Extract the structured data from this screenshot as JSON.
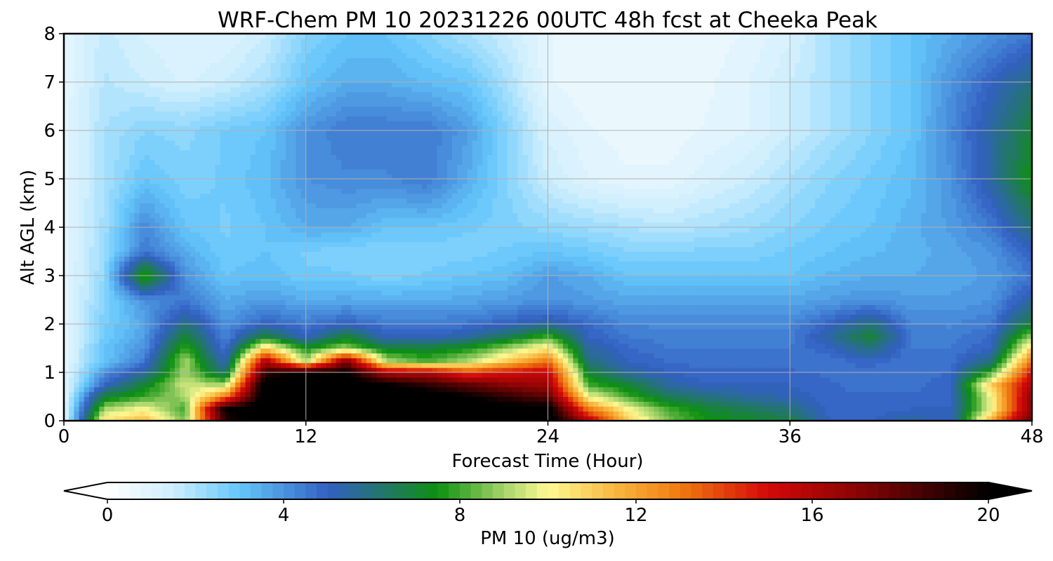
{
  "chart_data": {
    "type": "heatmap",
    "title": "WRF-Chem PM 10  20231226 00UTC 48h fcst at Cheeka Peak",
    "xlabel": "Forecast Time (Hour)",
    "ylabel": "Alt AGL (km)",
    "xlim": [
      0,
      48
    ],
    "ylim": [
      0,
      8
    ],
    "xticks": [
      "0",
      "12",
      "24",
      "36",
      "48"
    ],
    "yticks": [
      "0",
      "1",
      "2",
      "3",
      "4",
      "5",
      "6",
      "7",
      "8"
    ],
    "grid": true,
    "colorbar": {
      "label": "PM 10  (ug/m3)",
      "range": [
        0,
        20
      ],
      "ticks": [
        "0",
        "4",
        "8",
        "12",
        "16",
        "20"
      ],
      "extend": "both",
      "orientation": "horizontal",
      "stops": [
        {
          "v": 0,
          "color": "#ffffff"
        },
        {
          "v": 1.5,
          "color": "#cdeefd"
        },
        {
          "v": 3,
          "color": "#64c6fb"
        },
        {
          "v": 5,
          "color": "#3360c2"
        },
        {
          "v": 6.5,
          "color": "#1f7a5a"
        },
        {
          "v": 7.5,
          "color": "#0c9010"
        },
        {
          "v": 9,
          "color": "#a6d46a"
        },
        {
          "v": 10,
          "color": "#fffa94"
        },
        {
          "v": 11.5,
          "color": "#f8b840"
        },
        {
          "v": 13,
          "color": "#f07a10"
        },
        {
          "v": 15,
          "color": "#d40808"
        },
        {
          "v": 17,
          "color": "#8a0404"
        },
        {
          "v": 20,
          "color": "#000000"
        }
      ]
    },
    "description": "Time-height contour of PM10 concentration; highest values (>20) in lowest 1.3 km between hours 8-26, elevated plume near hour 4 at 3 km, and rising levels after hour 45.",
    "field": {
      "x_hours": [
        0,
        2,
        4,
        6,
        8,
        10,
        12,
        14,
        16,
        18,
        20,
        22,
        24,
        26,
        28,
        30,
        32,
        34,
        36,
        38,
        40,
        42,
        44,
        46,
        48
      ],
      "y_km": [
        0,
        0.25,
        0.5,
        0.75,
        1.0,
        1.25,
        1.5,
        1.75,
        2.0,
        2.5,
        3.0,
        3.5,
        4.0,
        5.0,
        6.0,
        7.0,
        8.0
      ],
      "values": [
        [
          0.8,
          10.5,
          11.5,
          8.5,
          19,
          21,
          21,
          21,
          21,
          21,
          21,
          20.5,
          21,
          16,
          11,
          8.5,
          7.5,
          7.2,
          6.8,
          5,
          5,
          5.5,
          5,
          12,
          18
        ],
        [
          0.8,
          9,
          10,
          8,
          20,
          21,
          21,
          21,
          21,
          21,
          21,
          20.5,
          20.5,
          13,
          10,
          8,
          7,
          6.5,
          6,
          4.8,
          4.8,
          5,
          5,
          10,
          17
        ],
        [
          0.8,
          7,
          8,
          9,
          13,
          21,
          21,
          21,
          21,
          21,
          20,
          19,
          18,
          10,
          8,
          6.5,
          6,
          5.5,
          5.2,
          4.8,
          4.8,
          4.8,
          5,
          10,
          17
        ],
        [
          0.8,
          5,
          7,
          9.5,
          9,
          21,
          21,
          21,
          20,
          19,
          18,
          17,
          16.5,
          8,
          7,
          5.5,
          5,
          5,
          5,
          4.8,
          4.6,
          4.6,
          5,
          11,
          16
        ],
        [
          0.8,
          4,
          5.5,
          9,
          6,
          19,
          20,
          20,
          16,
          16,
          14,
          15,
          15.5,
          7,
          5.5,
          5,
          4.8,
          4.8,
          4.8,
          4.7,
          4.5,
          4.5,
          4.8,
          8,
          15
        ],
        [
          0.8,
          3,
          4.5,
          9,
          5,
          16,
          9,
          17,
          9,
          8,
          9,
          11,
          13,
          6,
          5,
          4.7,
          4.6,
          4.6,
          4.6,
          4.6,
          5,
          4.5,
          4.6,
          6,
          13
        ],
        [
          0.8,
          3,
          4,
          8,
          4.5,
          11,
          7.5,
          9,
          7,
          7,
          7.5,
          9,
          10.5,
          5.5,
          4.8,
          4.5,
          4.5,
          4.5,
          4.5,
          5,
          6,
          4.5,
          4.5,
          5,
          11
        ],
        [
          0.8,
          2.8,
          3.8,
          7,
          4.2,
          7,
          5,
          7,
          5,
          5,
          5.5,
          6.5,
          8,
          5,
          4.5,
          4.4,
          4.4,
          4.4,
          4.4,
          5.5,
          7,
          4.5,
          4.4,
          4.8,
          9
        ],
        [
          0.8,
          2.7,
          3.6,
          6,
          4,
          5,
          4.5,
          5,
          4.5,
          4.5,
          4.6,
          5,
          5.5,
          4.8,
          4.2,
          4.2,
          4.2,
          4.2,
          4.2,
          5,
          6,
          4.3,
          4.2,
          4.5,
          7
        ],
        [
          0.8,
          2.5,
          4,
          4.5,
          3.5,
          3.8,
          3.5,
          3.6,
          3.5,
          3.5,
          3.6,
          3.8,
          4,
          3.8,
          3.6,
          3.6,
          3.6,
          3.6,
          3.6,
          3.8,
          4,
          3.8,
          3.8,
          4,
          5.5
        ],
        [
          0.8,
          2.3,
          8,
          4,
          3,
          3.2,
          2.8,
          2.8,
          2.6,
          2.8,
          3,
          3.2,
          3.8,
          3.5,
          3,
          3,
          3,
          3,
          3,
          3.3,
          3.5,
          3.5,
          3.6,
          3.8,
          4.5
        ],
        [
          0.8,
          2.2,
          4.5,
          3.5,
          2.8,
          3,
          2.7,
          2.6,
          2.5,
          2.6,
          2.6,
          2.8,
          3,
          2.8,
          2.5,
          2.5,
          2.6,
          2.6,
          2.8,
          3,
          3.2,
          3.4,
          3.6,
          4,
          5
        ],
        [
          0.8,
          2.1,
          4.2,
          3,
          2.7,
          3,
          3.5,
          3.5,
          3,
          3,
          2.8,
          2.6,
          2.4,
          2.2,
          2,
          1.8,
          2,
          2.2,
          2.5,
          2.8,
          3,
          3.4,
          3.8,
          4.5,
          6
        ],
        [
          0.8,
          2,
          3,
          2.6,
          2.8,
          3.2,
          4,
          4.2,
          4.2,
          4.5,
          3.5,
          2.5,
          1.5,
          1,
          0.8,
          0.8,
          1.2,
          1.5,
          2,
          2.5,
          2.8,
          3.2,
          4,
          5.5,
          7.5
        ],
        [
          0.8,
          2,
          2.5,
          2.4,
          2.8,
          3,
          4,
          4.5,
          4.5,
          4.5,
          3.8,
          2.5,
          1.2,
          0.8,
          0.6,
          0.6,
          0.8,
          1,
          1.5,
          2,
          2.5,
          3,
          4.2,
          5.5,
          7
        ],
        [
          0.8,
          1.8,
          1.5,
          1.2,
          1.5,
          2,
          3,
          3.5,
          3.5,
          3.2,
          3,
          2,
          0.8,
          0.5,
          0.5,
          0.5,
          0.7,
          1,
          1.5,
          2,
          2.5,
          3,
          4,
          5,
          6
        ],
        [
          0.8,
          1.6,
          1.2,
          1,
          1,
          1.5,
          2.5,
          3,
          3,
          2.5,
          2,
          1.5,
          0.8,
          0.5,
          0.5,
          0.5,
          0.6,
          0.8,
          1.2,
          2,
          2.5,
          3,
          3.5,
          4,
          4.5
        ]
      ]
    }
  }
}
